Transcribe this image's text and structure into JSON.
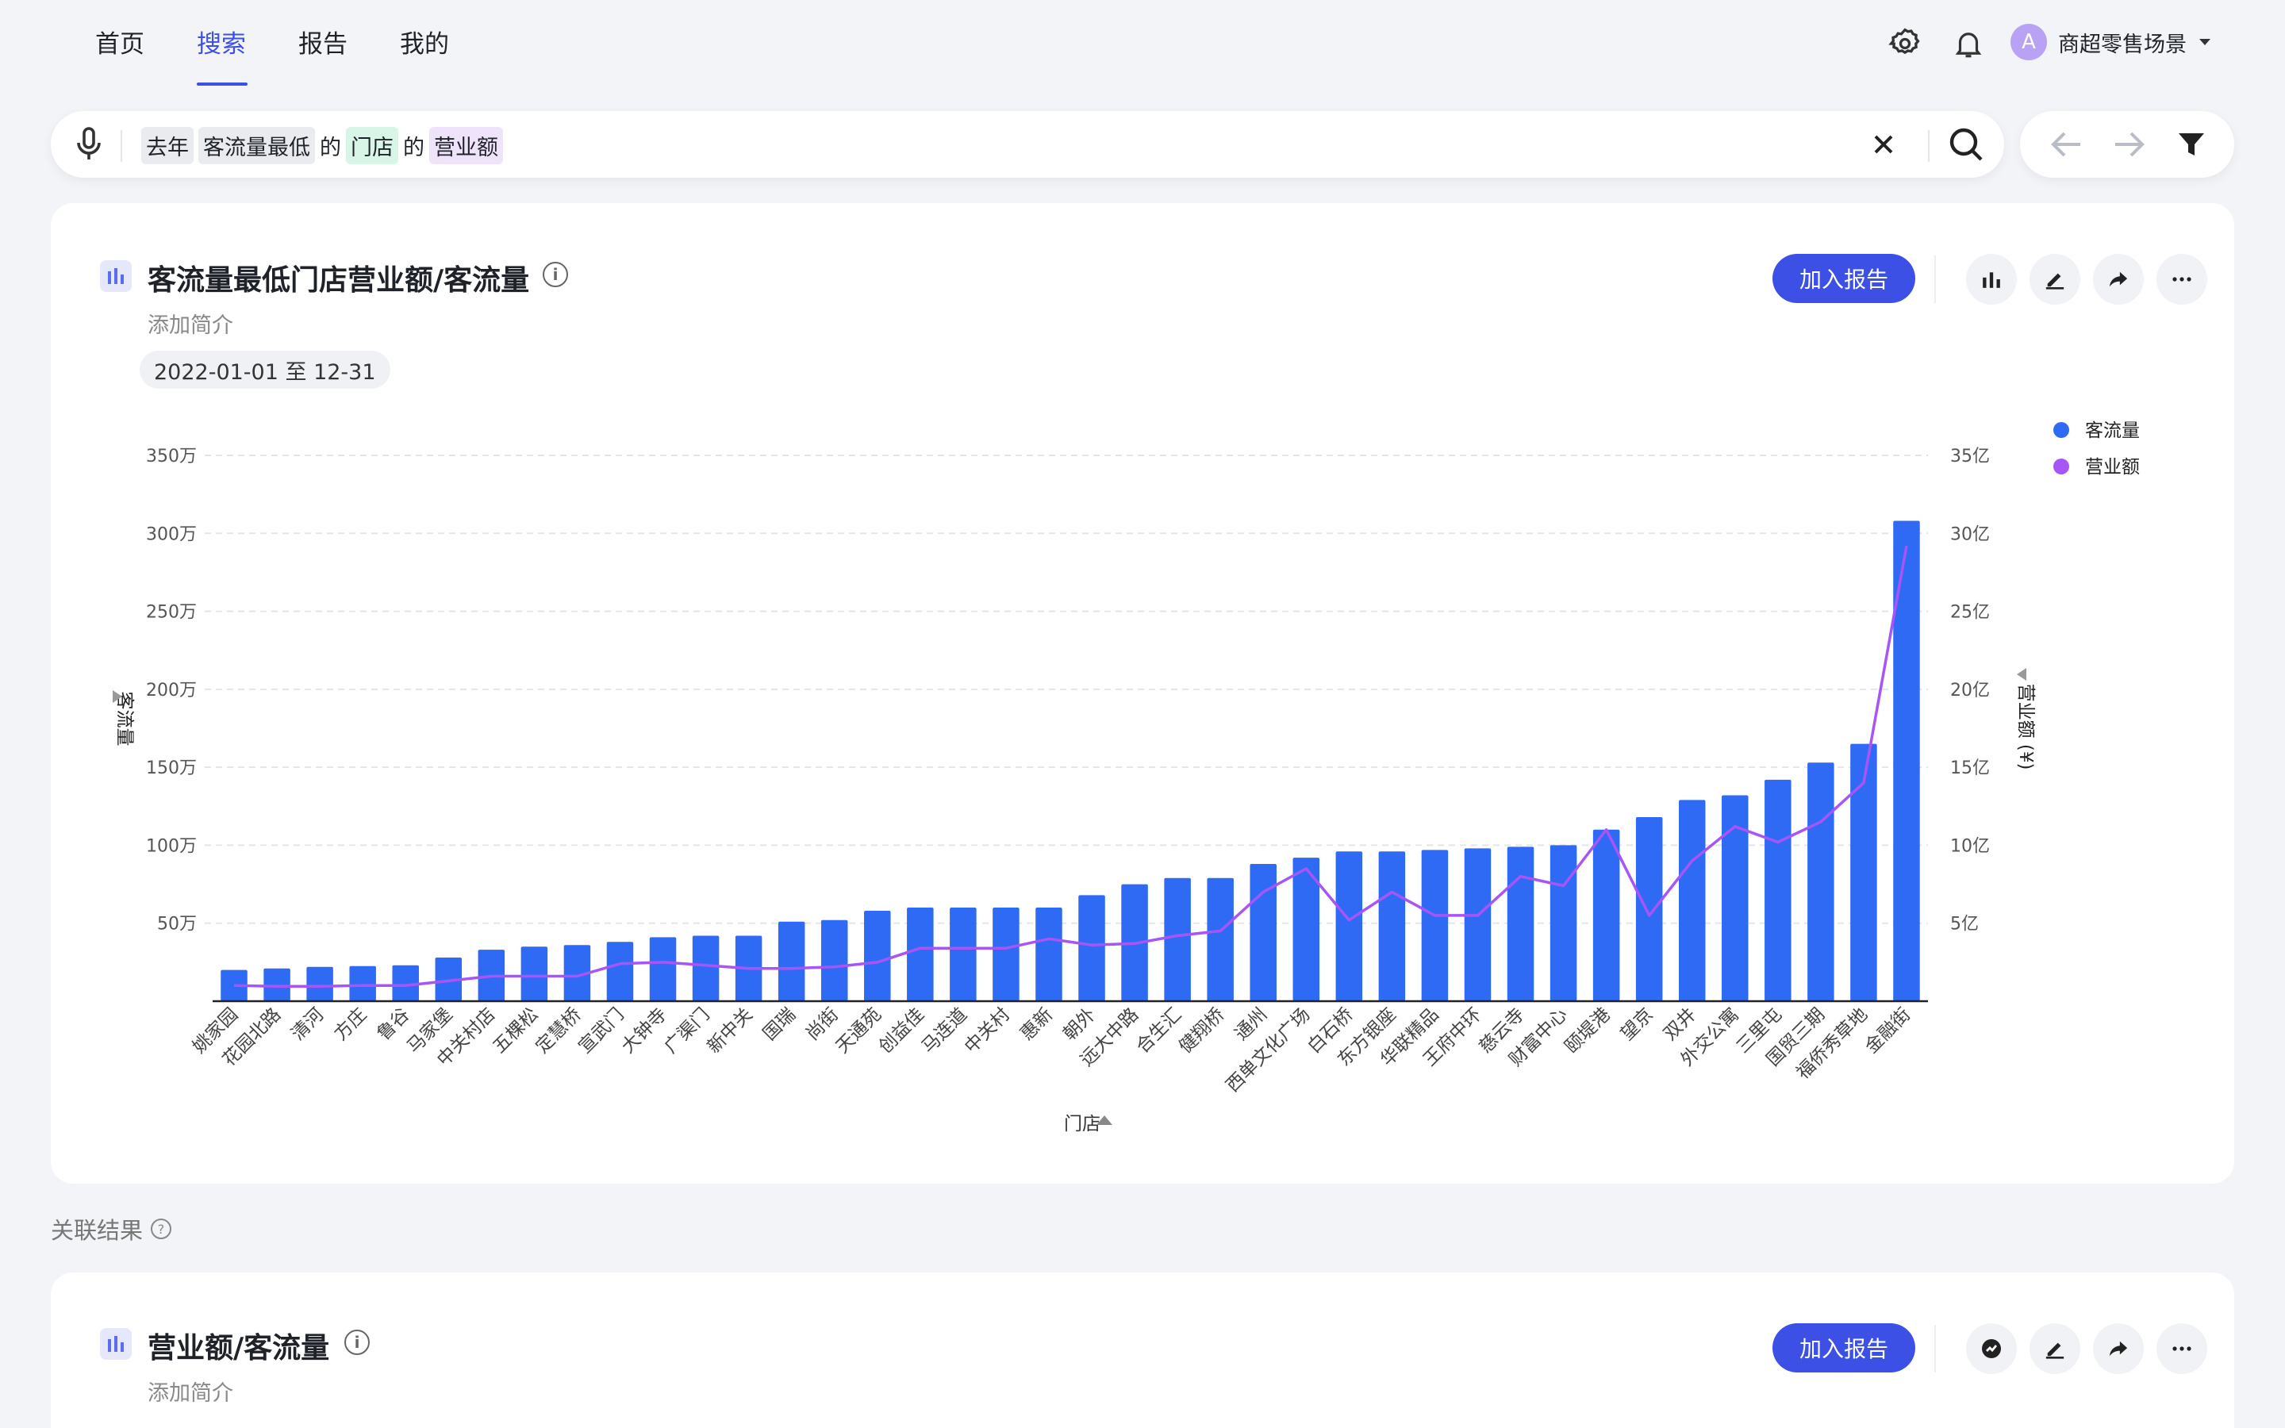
{
  "nav": {
    "tabs": [
      {
        "label": "首页"
      },
      {
        "label": "搜索"
      },
      {
        "label": "报告"
      },
      {
        "label": "我的"
      }
    ],
    "active_tab": 1,
    "user": {
      "avatar_letter": "A",
      "name": "商超零售场景"
    }
  },
  "search": {
    "tokens": [
      "去年",
      "客流量最低",
      "的",
      "门店",
      "的",
      "营业额"
    ]
  },
  "card1": {
    "title": "客流量最低门店营业额/客流量",
    "subtitle": "添加简介",
    "date_range": "2022-01-01 至 12-31",
    "add_report": "加入报告",
    "info": "i"
  },
  "related_label": "关联结果",
  "card2": {
    "title": "营业额/客流量",
    "subtitle": "添加简介",
    "add_report": "加入报告",
    "info": "i"
  },
  "colors": {
    "accent": "#3d50e6",
    "bar": "#2f6af5",
    "line": "#a855f7"
  },
  "chart_data": {
    "type": "bar",
    "xlabel": "门店",
    "ylabel": "客流量",
    "y2label": "营业额 (¥)",
    "ylim": [
      0,
      3500000
    ],
    "y2lim": [
      0,
      3500000000
    ],
    "y_ticks": [
      "50万",
      "100万",
      "150万",
      "200万",
      "250万",
      "300万",
      "350万"
    ],
    "y2_ticks": [
      "5亿",
      "10亿",
      "15亿",
      "20亿",
      "25亿",
      "30亿",
      "35亿"
    ],
    "legend_position": "top-right",
    "categories": [
      "姚家园",
      "花园北路",
      "清河",
      "方庄",
      "鲁谷",
      "马家堡",
      "中关村店",
      "五棵松",
      "定慧桥",
      "宣武门",
      "大钟寺",
      "广渠门",
      "新中关",
      "国瑞",
      "尚街",
      "天通苑",
      "创益佳",
      "马连道",
      "中关村",
      "惠新",
      "朝外",
      "远大中路",
      "合生汇",
      "健翔桥",
      "通州",
      "西单文化广场",
      "白石桥",
      "东方银座",
      "华联精品",
      "王府中环",
      "慈云寺",
      "财富中心",
      "颐堤港",
      "望京",
      "双井",
      "外交公寓",
      "三里屯",
      "国贸三期",
      "福侨秀草地",
      "金融街"
    ],
    "series": [
      {
        "name": "客流量",
        "axis": "left",
        "type": "bar",
        "values": [
          200000,
          210000,
          220000,
          225000,
          230000,
          280000,
          330000,
          350000,
          360000,
          380000,
          410000,
          420000,
          420000,
          510000,
          520000,
          580000,
          600000,
          600000,
          600000,
          600000,
          680000,
          750000,
          790000,
          790000,
          880000,
          920000,
          960000,
          960000,
          970000,
          980000,
          990000,
          1000000,
          1100000,
          1180000,
          1290000,
          1320000,
          1420000,
          1530000,
          1650000,
          3080000
        ]
      },
      {
        "name": "营业额",
        "axis": "right",
        "type": "line",
        "values": [
          100000000,
          95000000,
          95000000,
          100000000,
          100000000,
          130000000,
          160000000,
          160000000,
          160000000,
          240000000,
          250000000,
          230000000,
          210000000,
          210000000,
          220000000,
          250000000,
          340000000,
          340000000,
          340000000,
          400000000,
          360000000,
          370000000,
          420000000,
          450000000,
          700000000,
          850000000,
          520000000,
          700000000,
          550000000,
          550000000,
          800000000,
          740000000,
          1100000000,
          550000000,
          900000000,
          1120000000,
          1020000000,
          1150000000,
          1400000000,
          2920000000
        ]
      }
    ]
  }
}
